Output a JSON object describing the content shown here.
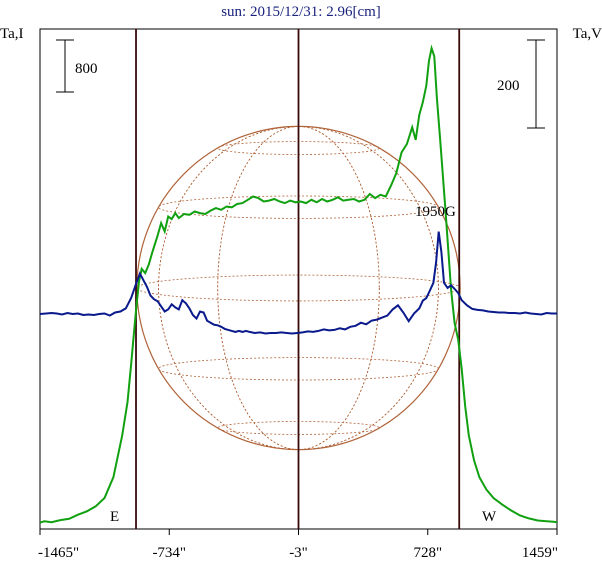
{
  "chart_data": {
    "type": "line",
    "title": "sun: 2015/12/31: 2.96[cm]",
    "left_axis_label": "Ta,I",
    "right_axis_label": "Ta,V",
    "left_scale_bar": "800",
    "right_scale_bar": "200",
    "x_ticks": [
      "-1465\"",
      "-734\"",
      "-3\"",
      "728\"",
      "1459\""
    ],
    "x_tick_values": [
      -1465,
      -734,
      -3,
      728,
      1459
    ],
    "xlim": [
      -1465,
      1459
    ],
    "limb_markers": {
      "east": "E",
      "west": "W",
      "east_x": -922,
      "west x": 906
    },
    "annotation": {
      "text": "1950G",
      "x": 770
    },
    "grid": false,
    "colors": {
      "intensity": "#10a010",
      "polarization": "#0a1a8c",
      "disk": "#b0643a",
      "limb": "#3a0a0a"
    },
    "series": [
      {
        "key": "I",
        "color": "#10a010",
        "x": [
          -1465,
          -1440,
          -1400,
          -1350,
          -1300,
          -1250,
          -1200,
          -1150,
          -1100,
          -1050,
          -1000,
          -970,
          -950,
          -935,
          -922,
          -905,
          -890,
          -870,
          -850,
          -830,
          -800,
          -780,
          -760,
          -740,
          -720,
          -700,
          -680,
          -650,
          -620,
          -590,
          -560,
          -530,
          -500,
          -470,
          -440,
          -410,
          -380,
          -350,
          -320,
          -290,
          -260,
          -230,
          -200,
          -170,
          -140,
          -110,
          -80,
          -50,
          -20,
          10,
          40,
          70,
          100,
          130,
          160,
          190,
          220,
          250,
          280,
          310,
          340,
          370,
          400,
          430,
          460,
          490,
          520,
          550,
          580,
          610,
          640,
          660,
          680,
          700,
          720,
          735,
          750,
          765,
          780,
          800,
          830,
          860,
          880,
          900,
          920,
          940,
          960,
          990,
          1020,
          1060,
          1100,
          1150,
          1200,
          1250,
          1300,
          1350,
          1400,
          1440,
          1459
        ],
        "y": [
          0.05,
          0.2,
          0.1,
          0.35,
          0.5,
          1.0,
          1.4,
          2.0,
          3.0,
          5.5,
          10.5,
          14.5,
          19.0,
          22.5,
          25.5,
          29.0,
          30.5,
          30.0,
          31.0,
          32.5,
          34.5,
          36.0,
          35.0,
          36.8,
          36.5,
          37.2,
          36.6,
          37.1,
          37.0,
          37.4,
          37.2,
          37.1,
          37.5,
          37.8,
          37.6,
          38.0,
          37.9,
          38.3,
          38.4,
          38.8,
          39.2,
          39.0,
          38.6,
          38.7,
          38.9,
          38.6,
          38.4,
          38.7,
          38.5,
          38.6,
          38.4,
          38.8,
          38.5,
          38.9,
          38.6,
          38.8,
          39.1,
          38.7,
          38.8,
          38.9,
          38.6,
          38.8,
          39.5,
          39.0,
          39.4,
          39.2,
          40.5,
          42.0,
          44.5,
          45.5,
          47.5,
          46.0,
          49.0,
          50.5,
          52.5,
          55.5,
          57.0,
          56.0,
          51.0,
          45.5,
          37.0,
          28.0,
          24.0,
          22.0,
          18.5,
          14.0,
          10.5,
          7.5,
          5.5,
          4.0,
          3.0,
          2.2,
          1.5,
          0.9,
          0.55,
          0.3,
          0.2,
          0.15,
          0.1
        ]
      },
      {
        "key": "V",
        "color": "#0a1a8c",
        "x": [
          -1465,
          -1430,
          -1400,
          -1370,
          -1340,
          -1310,
          -1280,
          -1250,
          -1220,
          -1190,
          -1160,
          -1130,
          -1100,
          -1070,
          -1040,
          -1010,
          -980,
          -950,
          -920,
          -900,
          -880,
          -860,
          -840,
          -820,
          -800,
          -780,
          -760,
          -740,
          -720,
          -700,
          -680,
          -660,
          -640,
          -620,
          -600,
          -580,
          -560,
          -540,
          -520,
          -500,
          -480,
          -460,
          -440,
          -420,
          -400,
          -380,
          -360,
          -340,
          -320,
          -300,
          -280,
          -250,
          -220,
          -190,
          -160,
          -130,
          -100,
          -70,
          -40,
          -10,
          20,
          50,
          80,
          110,
          140,
          170,
          200,
          230,
          260,
          290,
          320,
          350,
          380,
          410,
          440,
          470,
          500,
          530,
          560,
          590,
          620,
          650,
          680,
          700,
          720,
          740,
          760,
          775,
          790,
          805,
          820,
          840,
          860,
          880,
          900,
          920,
          950,
          980,
          1010,
          1040,
          1070,
          1100,
          1130,
          1160,
          1190,
          1220,
          1250,
          1280,
          1310,
          1340,
          1370,
          1400,
          1430,
          1459
        ],
        "y": [
          -0.1,
          0.0,
          0.1,
          0.0,
          -0.2,
          0.1,
          -0.1,
          0.0,
          -0.3,
          -0.2,
          -0.3,
          -0.1,
          0.0,
          -0.4,
          0.2,
          0.4,
          1.0,
          3.0,
          6.0,
          7.8,
          6.5,
          5.2,
          3.5,
          2.8,
          2.4,
          1.4,
          0.4,
          0.8,
          1.8,
          1.2,
          0.8,
          2.6,
          2.0,
          1.0,
          -0.3,
          -1.0,
          0.4,
          0.2,
          -1.4,
          -1.8,
          -2.2,
          -2.3,
          -2.6,
          -3.0,
          -3.2,
          -3.4,
          -3.6,
          -3.4,
          -3.6,
          -3.4,
          -3.6,
          -3.8,
          -3.7,
          -3.9,
          -3.8,
          -3.8,
          -3.7,
          -3.8,
          -3.9,
          -3.8,
          -3.7,
          -3.5,
          -3.6,
          -3.4,
          -3.1,
          -3.3,
          -3.2,
          -2.9,
          -3.1,
          -2.6,
          -2.4,
          -1.8,
          -2.1,
          -1.4,
          -1.2,
          -0.8,
          -0.4,
          0.8,
          1.6,
          0.2,
          -1.5,
          0.0,
          1.0,
          2.5,
          3.0,
          4.5,
          6.0,
          10.0,
          16.0,
          12.0,
          6.0,
          5.0,
          5.5,
          4.8,
          4.0,
          2.6,
          1.6,
          0.9,
          0.7,
          0.6,
          0.4,
          0.3,
          0.2,
          0.2,
          0.1,
          0.1,
          0.0,
          0.2,
          0.0,
          -0.1,
          -0.2,
          0.1,
          0.0,
          0.0
        ]
      }
    ]
  }
}
